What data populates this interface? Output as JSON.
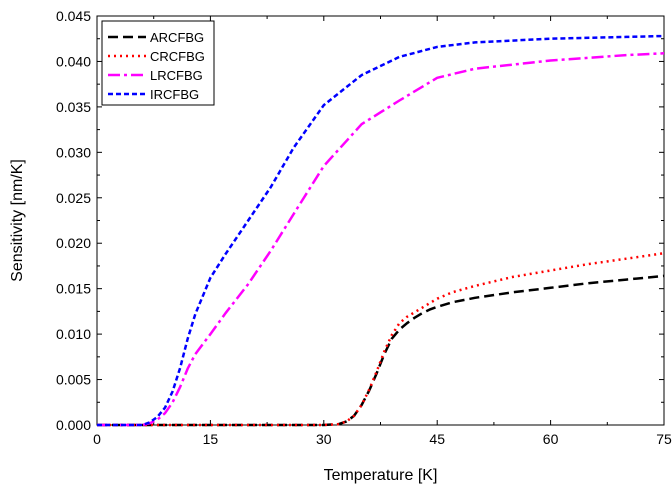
{
  "chart_data": {
    "type": "line",
    "title": "",
    "xlabel": "Temperature [K]",
    "ylabel": "Sensitivity [nm/K]",
    "xlim": [
      0,
      75
    ],
    "ylim": [
      0,
      0.045
    ],
    "xticks": [
      0,
      15,
      30,
      45,
      60,
      75
    ],
    "yticks": [
      0.0,
      0.005,
      0.01,
      0.015,
      0.02,
      0.025,
      0.03,
      0.035,
      0.04,
      0.045
    ],
    "xtick_labels": [
      "0",
      "15",
      "30",
      "45",
      "60",
      "75"
    ],
    "ytick_labels": [
      "0.000",
      "0.005",
      "0.010",
      "0.015",
      "0.020",
      "0.025",
      "0.030",
      "0.035",
      "0.040",
      "0.045"
    ],
    "grid": false,
    "legend_position": "top-left",
    "series": [
      {
        "name": "ARCFBG",
        "color": "#000000",
        "style": "dash",
        "x": [
          0,
          10,
          20,
          30,
          32,
          33,
          34,
          35,
          36,
          37,
          38,
          39,
          40,
          41,
          42,
          43,
          44,
          45,
          47,
          50,
          55,
          60,
          65,
          70,
          75
        ],
        "y": [
          0,
          0,
          0,
          0,
          0.0001,
          0.0004,
          0.001,
          0.0022,
          0.0038,
          0.0057,
          0.0078,
          0.0095,
          0.0105,
          0.0112,
          0.0118,
          0.0123,
          0.0127,
          0.013,
          0.0135,
          0.014,
          0.0146,
          0.0151,
          0.0156,
          0.016,
          0.0164
        ]
      },
      {
        "name": "CRCFBG",
        "color": "#ff0000",
        "style": "dot",
        "x": [
          0,
          10,
          20,
          30,
          32,
          33,
          34,
          35,
          36,
          37,
          38,
          39,
          40,
          41,
          42,
          43,
          44,
          45,
          47,
          50,
          55,
          60,
          65,
          70,
          75
        ],
        "y": [
          0,
          0,
          0,
          0,
          0.0001,
          0.0004,
          0.001,
          0.0022,
          0.0039,
          0.0059,
          0.0081,
          0.0099,
          0.0112,
          0.0119,
          0.0124,
          0.0129,
          0.0134,
          0.0139,
          0.0146,
          0.0153,
          0.0163,
          0.017,
          0.0177,
          0.0183,
          0.0189
        ]
      },
      {
        "name": "LRCFBG",
        "color": "#ff00ff",
        "style": "dashdot",
        "x": [
          0,
          6,
          7,
          8,
          9,
          10,
          11,
          12,
          13,
          15,
          17,
          20,
          23,
          26,
          30,
          35,
          40,
          45,
          50,
          60,
          70,
          75
        ],
        "y": [
          0,
          0,
          0.0002,
          0.0006,
          0.0013,
          0.0025,
          0.0042,
          0.0062,
          0.0078,
          0.01,
          0.0123,
          0.0155,
          0.0192,
          0.0232,
          0.0285,
          0.0331,
          0.0357,
          0.0382,
          0.0392,
          0.0401,
          0.0407,
          0.0409
        ]
      },
      {
        "name": "IRCFBG",
        "color": "#0000ff",
        "style": "shortdash",
        "x": [
          0,
          6,
          7,
          8,
          9,
          10,
          11,
          12,
          13,
          15,
          17,
          20,
          23,
          26,
          30,
          35,
          40,
          45,
          50,
          60,
          70,
          75
        ],
        "y": [
          0,
          0,
          0.0003,
          0.0009,
          0.0019,
          0.0037,
          0.0063,
          0.0095,
          0.0122,
          0.0162,
          0.0188,
          0.0225,
          0.0262,
          0.0305,
          0.0352,
          0.0385,
          0.0405,
          0.0416,
          0.0421,
          0.0425,
          0.0427,
          0.0428
        ]
      }
    ]
  }
}
